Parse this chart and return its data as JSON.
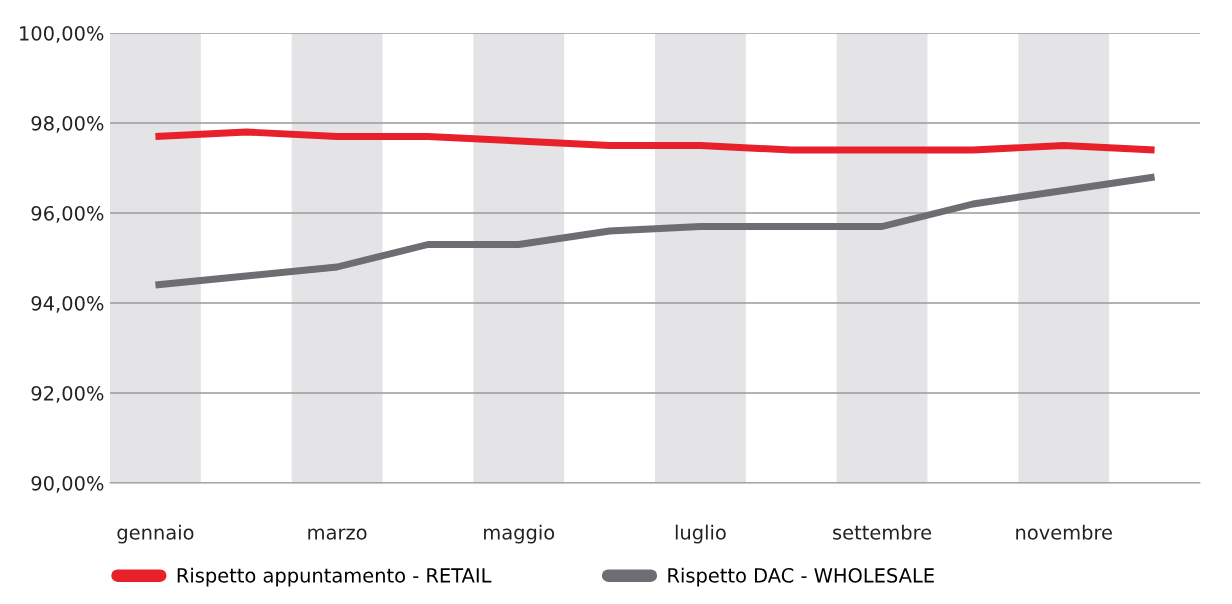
{
  "chart_data": {
    "type": "line",
    "categories": [
      "gennaio",
      null,
      "marzo",
      null,
      "maggio",
      null,
      "luglio",
      null,
      "settembre",
      null,
      "novembre",
      null
    ],
    "series": [
      {
        "name": "Rispetto appuntamento - RETAIL",
        "color": "#e8202a",
        "values": [
          97.7,
          97.8,
          97.7,
          97.7,
          97.6,
          97.5,
          97.5,
          97.4,
          97.4,
          97.4,
          97.5,
          97.4
        ]
      },
      {
        "name": "Rispetto DAC - WHOLESALE",
        "color": "#6d6e71",
        "values": [
          94.4,
          94.6,
          94.8,
          95.3,
          95.3,
          95.6,
          95.7,
          95.7,
          95.7,
          96.2,
          96.5,
          96.8
        ]
      }
    ],
    "ylim": [
      90,
      100
    ],
    "yticks": [
      {
        "value": 90,
        "label": "90,00%"
      },
      {
        "value": 92,
        "label": "92,00%"
      },
      {
        "value": 94,
        "label": "94,00%"
      },
      {
        "value": 96,
        "label": "96,00%"
      },
      {
        "value": 98,
        "label": "98,00%"
      },
      {
        "value": 100,
        "label": "100,00%"
      }
    ],
    "bands": [
      {
        "axis": "x",
        "from": "gennaio",
        "to": "gennaio",
        "color": "#e4e4e6"
      },
      {
        "axis": "x",
        "from": "marzo",
        "to": "marzo",
        "color": "#e4e4e6"
      },
      {
        "axis": "x",
        "from": "maggio",
        "to": "maggio",
        "color": "#e4e4e6"
      },
      {
        "axis": "x",
        "from": "luglio",
        "to": "luglio",
        "color": "#e4e4e6"
      },
      {
        "axis": "x",
        "from": "settembre",
        "to": "settembre",
        "color": "#e4e4e6"
      },
      {
        "axis": "x",
        "from": "novembre",
        "to": "novembre",
        "color": "#e4e4e6"
      }
    ],
    "grid": "y",
    "legend": "bottom",
    "marker": "none",
    "line_style": "solid"
  }
}
